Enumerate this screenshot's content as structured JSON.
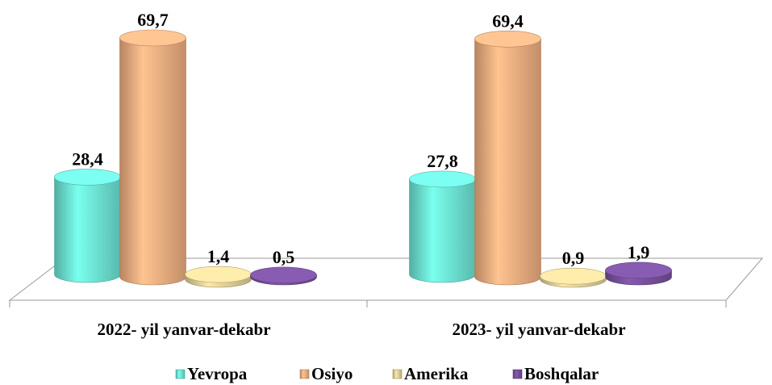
{
  "chart_data": {
    "type": "bar3d",
    "categories": [
      "2022- yil yanvar-dekabr",
      "2023- yil yanvar-dekabr"
    ],
    "series": [
      {
        "name": "Yevropa",
        "color": "#6fe8d8",
        "values": [
          28.4,
          27.8
        ],
        "value_labels": [
          "28,4",
          "27,8"
        ]
      },
      {
        "name": "Osiyo",
        "color": "#f4b183",
        "values": [
          69.7,
          69.4
        ],
        "value_labels": [
          "69,7",
          "69,4"
        ]
      },
      {
        "name": "Amerika",
        "color": "#e4d49a",
        "values": [
          1.4,
          0.9
        ],
        "value_labels": [
          "1,4",
          "0,9"
        ]
      },
      {
        "name": "Boshqalar",
        "color": "#7a52a0",
        "values": [
          0.5,
          1.9
        ],
        "value_labels": [
          "0,5",
          "1,9"
        ]
      }
    ]
  }
}
